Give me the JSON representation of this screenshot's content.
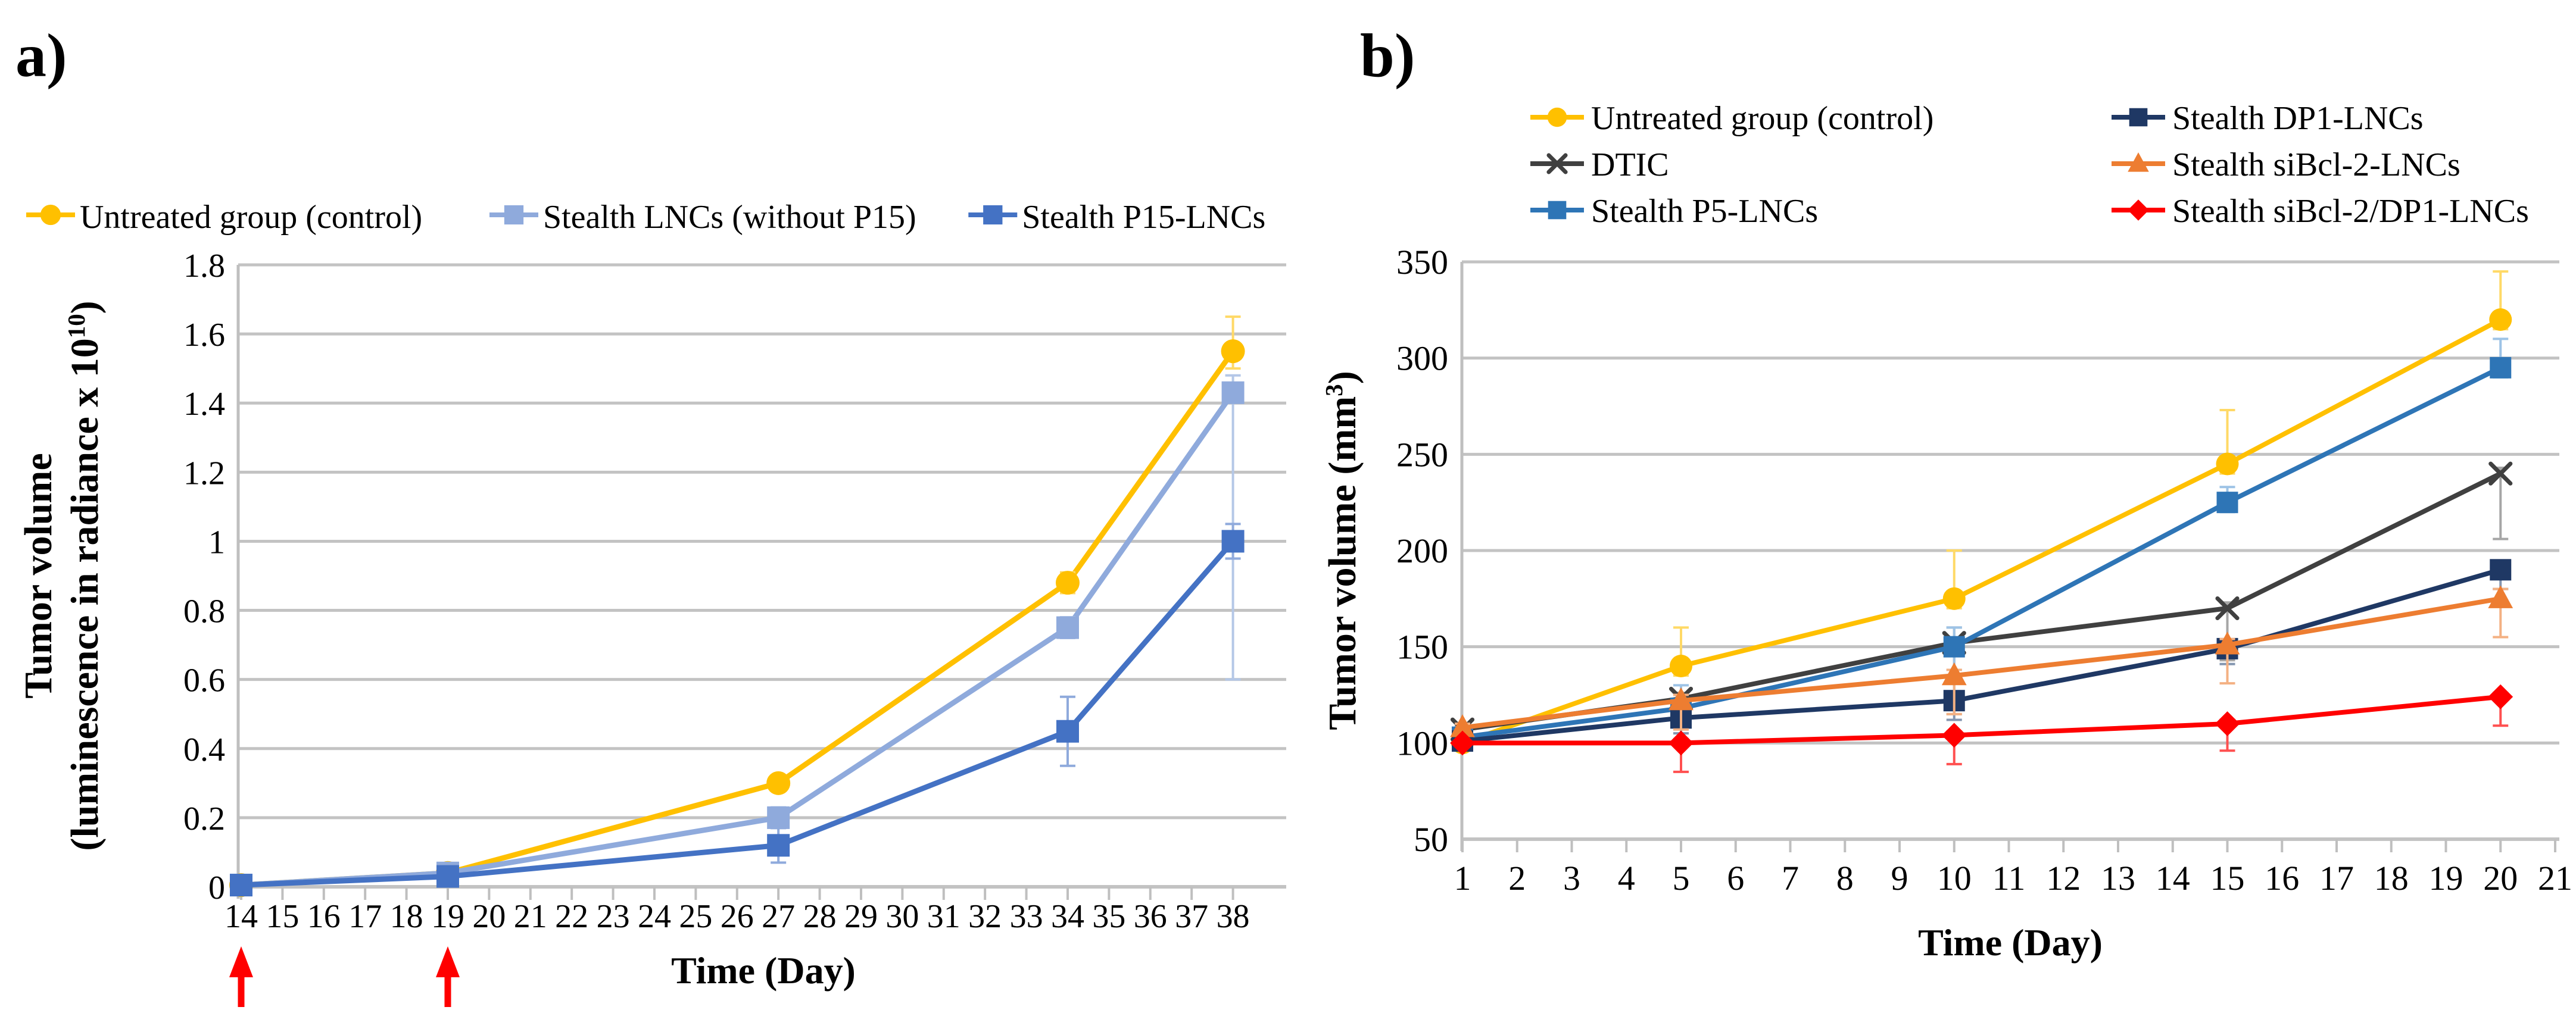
{
  "page": {
    "background": "#FFFFFF"
  },
  "chart_data": [
    {
      "type": "line",
      "panel_label": "a)",
      "xlabel": "Time (Day)",
      "ylabel_lines": [
        [
          {
            "t": "Tumor volume"
          }
        ],
        [
          {
            "t": "(luminescence in radiance x 10"
          },
          {
            "t": "10",
            "sup": true
          },
          {
            "t": ")"
          }
        ]
      ],
      "xlim": [
        14,
        38
      ],
      "ylim": [
        0,
        1.8
      ],
      "grid": true,
      "legend_position": "top-row",
      "x_tick_labels": [
        "14",
        "15",
        "16",
        "17",
        "18",
        "19",
        "20",
        "21",
        "22",
        "23",
        "24",
        "25",
        "26",
        "27",
        "28",
        "29",
        "30",
        "31",
        "32",
        "33",
        "34",
        "35",
        "36",
        "37",
        "38"
      ],
      "y_ticks": [
        {
          "v": 0,
          "label": "0"
        },
        {
          "v": 0.2,
          "label": "0.2"
        },
        {
          "v": 0.4,
          "label": "0.4"
        },
        {
          "v": 0.6,
          "label": "0.6"
        },
        {
          "v": 0.8,
          "label": "0.8"
        },
        {
          "v": 1,
          "label": "1"
        },
        {
          "v": 1.2,
          "label": "1.2"
        },
        {
          "v": 1.4,
          "label": "1.4"
        },
        {
          "v": 1.6,
          "label": "1.6"
        },
        {
          "v": 1.8,
          "label": "1.8"
        }
      ],
      "x": [
        14,
        19,
        27,
        34,
        38
      ],
      "annotations": {
        "arrows_at_x": [
          14,
          19
        ],
        "arrow_color": "#FF0000",
        "meaning": "injection time points"
      },
      "series": [
        {
          "name": "Untreated group (control)",
          "marker": "circle",
          "color": "#FFC000",
          "err_color": "#FFD966",
          "values": [
            0.005,
            0.04,
            0.3,
            0.88,
            1.55
          ],
          "err_lo": [
            0,
            0.01,
            0.02,
            0.03,
            0.05
          ],
          "err_hi": [
            0,
            0.01,
            0.02,
            0.03,
            0.1
          ]
        },
        {
          "name": "Stealth LNCs (without P15)",
          "marker": "square",
          "color": "#8FAADC",
          "err_color": "#B4C7E7",
          "values": [
            0.005,
            0.04,
            0.2,
            0.75,
            1.43
          ],
          "err_lo": [
            0,
            0.01,
            0.03,
            0.03,
            0.83
          ],
          "err_hi": [
            0,
            0.01,
            0.03,
            0.03,
            0.05
          ]
        },
        {
          "name": "Stealth P15-LNCs",
          "marker": "square",
          "color": "#4472C4",
          "err_color": "#8FAADC",
          "values": [
            0.005,
            0.03,
            0.12,
            0.45,
            1.0
          ],
          "err_lo": [
            0,
            0.01,
            0.05,
            0.1,
            0.05
          ],
          "err_hi": [
            0,
            0.01,
            0.05,
            0.1,
            0.05
          ]
        }
      ]
    },
    {
      "type": "line",
      "panel_label": "b)",
      "xlabel": "Time (Day)",
      "ylabel_lines": [
        [
          {
            "t": "Tumor volume (mm"
          },
          {
            "t": "3",
            "sup": true
          },
          {
            "t": ")"
          }
        ]
      ],
      "xlim": [
        1,
        21
      ],
      "ylim": [
        50,
        350
      ],
      "grid": true,
      "legend_position": "top-two-columns",
      "x_tick_labels": [
        "1",
        "2",
        "3",
        "4",
        "5",
        "6",
        "7",
        "8",
        "9",
        "10",
        "11",
        "12",
        "13",
        "14",
        "15",
        "16",
        "17",
        "18",
        "19",
        "20",
        "21"
      ],
      "y_ticks": [
        {
          "v": 50,
          "label": "50"
        },
        {
          "v": 100,
          "label": "100"
        },
        {
          "v": 150,
          "label": "150"
        },
        {
          "v": 200,
          "label": "200"
        },
        {
          "v": 250,
          "label": "250"
        },
        {
          "v": 300,
          "label": "300"
        },
        {
          "v": 350,
          "label": "350"
        }
      ],
      "x": [
        1,
        5,
        10,
        15,
        20
      ],
      "annotations": {
        "arrows_at_x": [],
        "arrow_color": "",
        "meaning": ""
      },
      "series": [
        {
          "name": "Untreated group (control)",
          "marker": "circle",
          "color": "#FFC000",
          "err_color": "#FFD966",
          "values": [
            100,
            140,
            175,
            245,
            320
          ],
          "err_lo": [
            3,
            5,
            5,
            5,
            5
          ],
          "err_hi": [
            3,
            20,
            25,
            28,
            25
          ]
        },
        {
          "name": "DTIC",
          "marker": "x",
          "color": "#404040",
          "err_color": "#A6A6A6",
          "values": [
            107,
            123,
            152,
            170,
            240
          ],
          "err_lo": [
            2,
            3,
            37,
            27,
            34
          ],
          "err_hi": [
            2,
            3,
            8,
            3,
            3
          ]
        },
        {
          "name": "Stealth P5-LNCs",
          "marker": "square",
          "color": "#2E75B6",
          "err_color": "#9DC3E6",
          "values": [
            103,
            118,
            150,
            225,
            295
          ],
          "err_lo": [
            3,
            8,
            12,
            5,
            5
          ],
          "err_hi": [
            3,
            12,
            10,
            8,
            15
          ]
        },
        {
          "name": "Stealth DP1-LNCs",
          "marker": "square",
          "color": "#1F3864",
          "err_color": "#8496B0",
          "values": [
            101,
            113,
            122,
            149,
            190
          ],
          "err_lo": [
            2,
            8,
            10,
            8,
            10
          ],
          "err_hi": [
            2,
            3,
            3,
            3,
            3
          ]
        },
        {
          "name": "Stealth siBcl-2-LNCs",
          "marker": "triangle",
          "color": "#ED7D31",
          "err_color": "#F4B183",
          "values": [
            108,
            122,
            135,
            151,
            175
          ],
          "err_lo": [
            2,
            15,
            20,
            20,
            20
          ],
          "err_hi": [
            2,
            3,
            3,
            3,
            5
          ]
        },
        {
          "name": "Stealth siBcl-2/DP1-LNCs",
          "marker": "diamond",
          "color": "#FF0000",
          "err_color": "#FF5050",
          "values": [
            100,
            100,
            104,
            110,
            124
          ],
          "err_lo": [
            2,
            15,
            15,
            14,
            15
          ],
          "err_hi": [
            2,
            2,
            2,
            2,
            2
          ]
        }
      ]
    }
  ]
}
